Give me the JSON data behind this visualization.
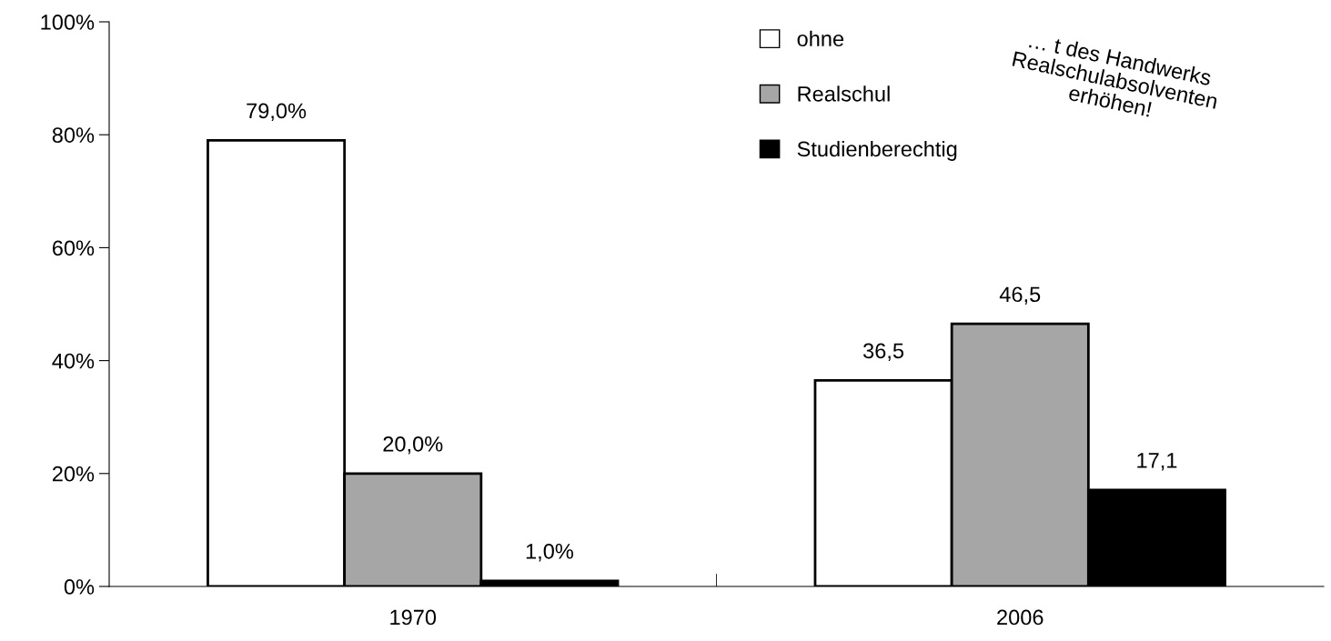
{
  "chart_data": {
    "type": "bar",
    "categories": [
      "1970",
      "2006"
    ],
    "series": [
      {
        "name": "ohne",
        "color": "#ffffff",
        "values": [
          79.0,
          36.5
        ],
        "value_labels": [
          "79,0%",
          "36,5"
        ]
      },
      {
        "name": "Realschul",
        "color": "#a6a6a6",
        "values": [
          20.0,
          46.5
        ],
        "value_labels": [
          "20,0%",
          "46,5"
        ]
      },
      {
        "name": "Studienberechtig",
        "color": "#000000",
        "values": [
          1.0,
          17.1
        ],
        "value_labels": [
          "1,0%",
          "17,1"
        ]
      }
    ],
    "ylim": [
      0,
      100
    ],
    "yticks": [
      {
        "value": 0,
        "label": "0%"
      },
      {
        "value": 20,
        "label": "20%"
      },
      {
        "value": 40,
        "label": "40%"
      },
      {
        "value": 60,
        "label": "60%"
      },
      {
        "value": 80,
        "label": "80%"
      },
      {
        "value": 100,
        "label": "100%"
      }
    ],
    "grid": false,
    "legend": "top",
    "annotations": [
      "… t des Handwerks\nRealschulabsolventen\nerhöhen!"
    ]
  }
}
